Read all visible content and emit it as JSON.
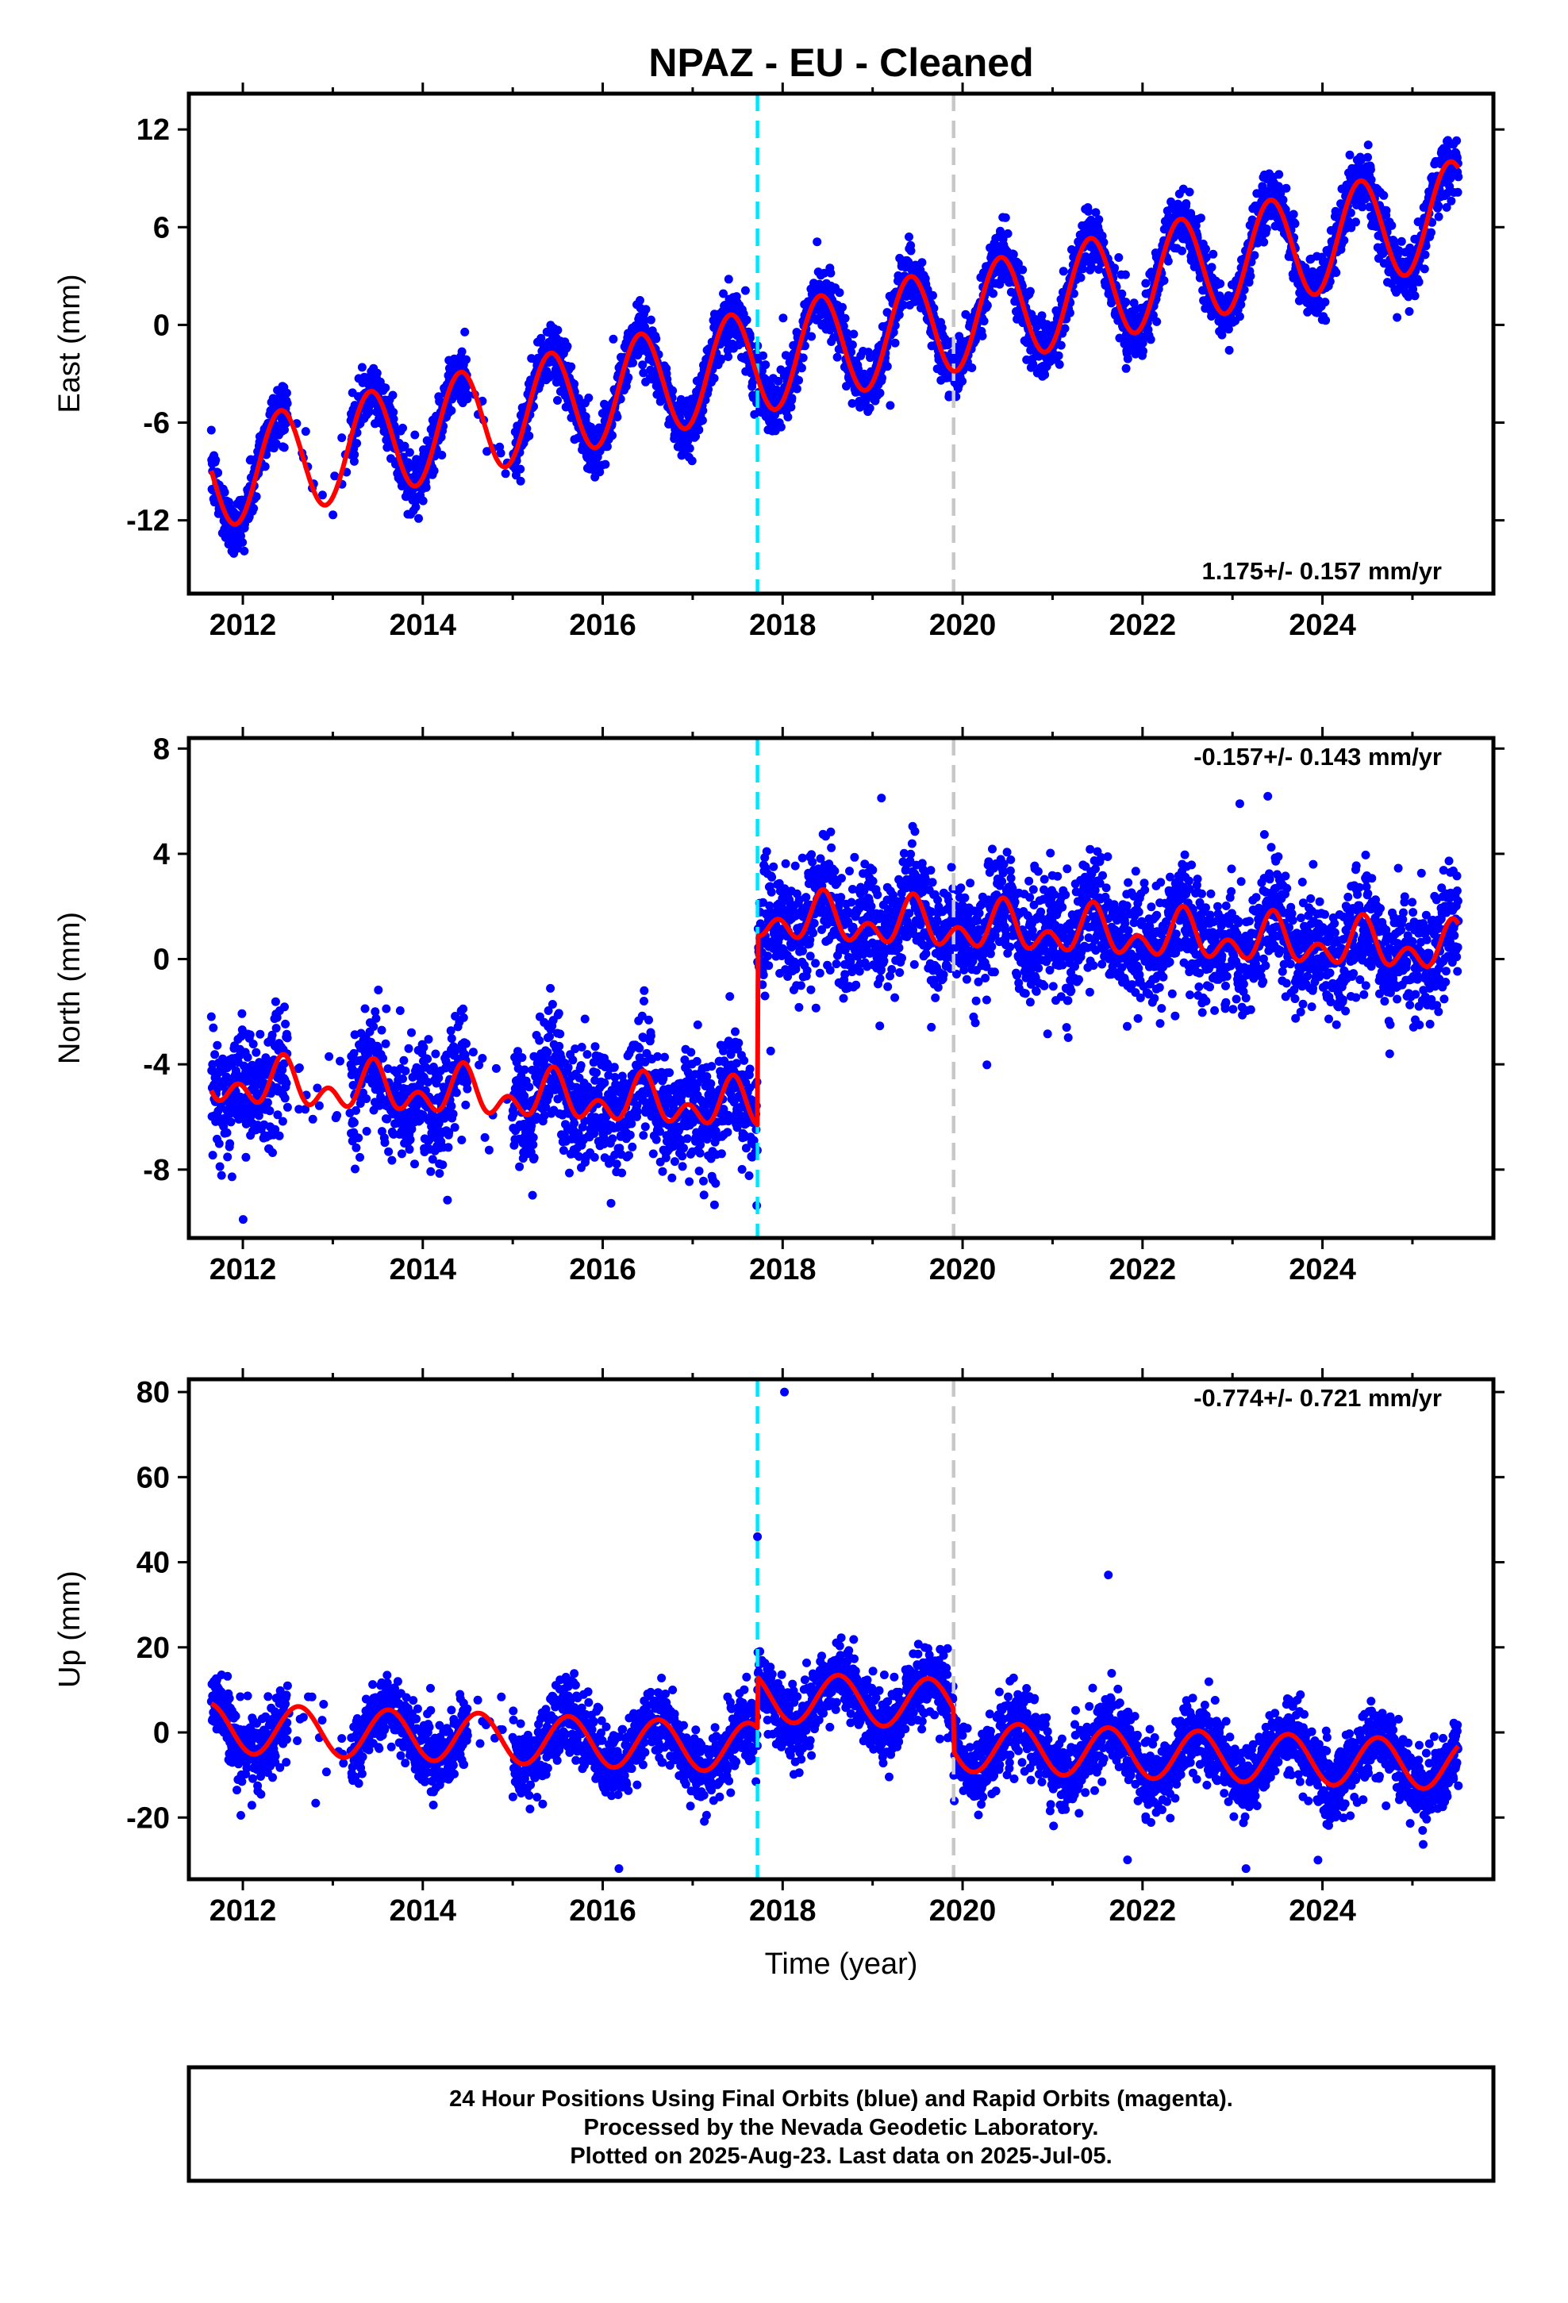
{
  "title": "NPAZ  - EU - Cleaned",
  "xlabel": "Time (year)",
  "x_ticks": [
    2012,
    2014,
    2016,
    2018,
    2020,
    2022,
    2024
  ],
  "x_tick_labels": [
    "2012",
    "2014",
    "2016",
    "2018",
    "2020",
    "2022",
    "2024"
  ],
  "footer": {
    "line1": "24 Hour Positions Using Final Orbits (blue) and Rapid Orbits (magenta).",
    "line2": "Processed by the Nevada Geodetic Laboratory.",
    "line3": "Plotted on 2025-Aug-23. Last data on 2025-Jul-05."
  },
  "colors": {
    "final_orbit_points": "#0000ff",
    "model_fit": "#ff0000",
    "equipment_change_line": "#00e5ff",
    "other_event_line": "#c8c8c8"
  },
  "chart_data": [
    {
      "type": "scatter",
      "component": "east",
      "ylabel": "East (mm)",
      "rate_label": "1.175+/- 0.157 mm/yr",
      "xlim": [
        2011.4,
        2025.9
      ],
      "ylim": [
        -16.5,
        14.2
      ],
      "yticks": [
        -12,
        -6,
        0,
        6,
        12
      ],
      "ytick_labels": [
        "-12",
        "-6",
        "0",
        "6",
        "12"
      ],
      "event_lines": [
        {
          "x": 2017.72,
          "style": "cyan-dashed"
        },
        {
          "x": 2019.9,
          "style": "gray-dashed"
        }
      ],
      "data_range": [
        2011.65,
        2025.51
      ],
      "model": {
        "trend_rate": 1.175,
        "intercept_at_2011_7": -9.3,
        "annual_amplitude": 3.2,
        "annual_peak_phase": 0.42,
        "offsets": [
          {
            "x": 2017.72,
            "step": 0.0
          }
        ]
      },
      "scatter_sd": 0.9,
      "scatter_outliers": 12,
      "point_count": 4400
    },
    {
      "type": "scatter",
      "component": "north",
      "ylabel": "North (mm)",
      "rate_label": "-0.157+/- 0.143 mm/yr",
      "xlim": [
        2011.4,
        2025.9
      ],
      "ylim": [
        -10.6,
        8.4
      ],
      "yticks": [
        -8,
        -4,
        0,
        4,
        8
      ],
      "ytick_labels": [
        "-8",
        "-4",
        "0",
        "4",
        "8"
      ],
      "event_lines": [
        {
          "x": 2017.72,
          "style": "cyan-dashed"
        },
        {
          "x": 2019.9,
          "style": "gray-dashed"
        }
      ],
      "data_range": [
        2011.65,
        2025.51
      ],
      "model": {
        "trend_rate": -0.157,
        "intercept_at_2011_7": -4.7,
        "annual_amplitude": 0.6,
        "semiannual_amplitude": 0.6,
        "annual_peak_phase": 0.45,
        "offsets": [
          {
            "x": 2017.72,
            "step": 7.2
          }
        ]
      },
      "scatter_sd": 1.1,
      "scatter_outliers": 10,
      "point_count": 4400
    },
    {
      "type": "scatter",
      "component": "up",
      "ylabel": "Up (mm)",
      "rate_label": "-0.774+/- 0.721 mm/yr",
      "xlim": [
        2011.4,
        2025.9
      ],
      "ylim": [
        -34.5,
        83
      ],
      "yticks": [
        -20,
        0,
        20,
        40,
        60,
        80
      ],
      "ytick_labels": [
        "-20",
        "0",
        "20",
        "40",
        "60",
        "80"
      ],
      "event_lines": [
        {
          "x": 2017.72,
          "style": "cyan-dashed"
        },
        {
          "x": 2019.9,
          "style": "gray-dashed"
        }
      ],
      "data_range": [
        2011.65,
        2025.51
      ],
      "model": {
        "trend_rate": -0.774,
        "intercept_at_2011_7": 1.0,
        "annual_amplitude": 5.8,
        "annual_peak_phase": 0.62,
        "offsets": [
          {
            "x": 2017.72,
            "step": 12.0
          },
          {
            "x": 2019.9,
            "step": -10.0
          }
        ]
      },
      "scatter_sd": 4.2,
      "scatter_outliers": 14,
      "point_count": 4400,
      "highlight_points": [
        {
          "x": 2018.02,
          "y": 80
        },
        {
          "x": 2017.72,
          "y": 46
        },
        {
          "x": 2021.62,
          "y": 37
        },
        {
          "x": 2016.18,
          "y": -32
        },
        {
          "x": 2023.15,
          "y": -32
        },
        {
          "x": 2023.95,
          "y": -30
        }
      ]
    }
  ]
}
